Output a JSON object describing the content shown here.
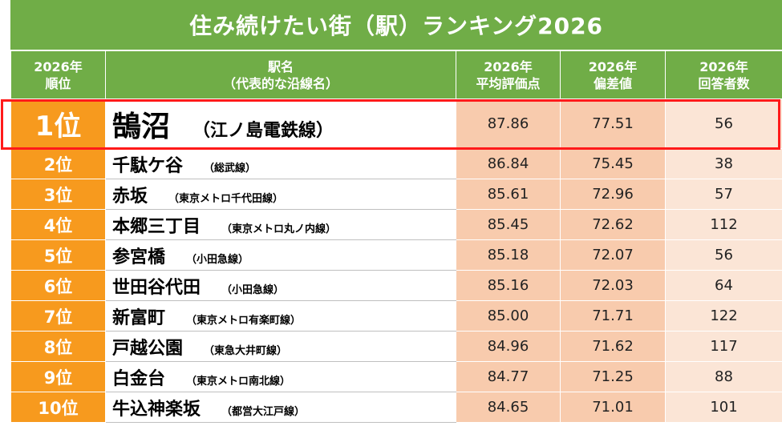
{
  "title": "住み続けたい街（駅）ランキング2026",
  "headers": {
    "rank": [
      "2026年",
      "順位"
    ],
    "station": [
      "駅名",
      "（代表的な沿線名）"
    ],
    "avg": [
      "2026年",
      "平均評価点"
    ],
    "dev": [
      "2026年",
      "偏差値"
    ],
    "count": [
      "2026年",
      "回答者数"
    ]
  },
  "rows": [
    {
      "rank": "1位",
      "name": "鵠沼",
      "line": "（江ノ島電鉄線）",
      "avg": "87.86",
      "dev": "77.51",
      "count": "56"
    },
    {
      "rank": "2位",
      "name": "千駄ケ谷",
      "line": "（総武線）",
      "avg": "86.84",
      "dev": "75.45",
      "count": "38"
    },
    {
      "rank": "3位",
      "name": "赤坂",
      "line": "（東京メトロ千代田線）",
      "avg": "85.61",
      "dev": "72.96",
      "count": "57"
    },
    {
      "rank": "4位",
      "name": "本郷三丁目",
      "line": "（東京メトロ丸ノ内線）",
      "avg": "85.45",
      "dev": "72.62",
      "count": "112"
    },
    {
      "rank": "5位",
      "name": "参宮橋",
      "line": "（小田急線）",
      "avg": "85.18",
      "dev": "72.07",
      "count": "56"
    },
    {
      "rank": "6位",
      "name": "世田谷代田",
      "line": "（小田急線）",
      "avg": "85.16",
      "dev": "72.03",
      "count": "64"
    },
    {
      "rank": "7位",
      "name": "新富町",
      "line": "（東京メトロ有楽町線）",
      "avg": "85.00",
      "dev": "71.71",
      "count": "122"
    },
    {
      "rank": "8位",
      "name": "戸越公園",
      "line": "（東急大井町線）",
      "avg": "84.96",
      "dev": "71.62",
      "count": "117"
    },
    {
      "rank": "9位",
      "name": "白金台",
      "line": "（東京メトロ南北線）",
      "avg": "84.77",
      "dev": "71.25",
      "count": "88"
    },
    {
      "rank": "10位",
      "name": "牛込神楽坂",
      "line": "（都営大江戸線）",
      "avg": "84.65",
      "dev": "71.01",
      "count": "101"
    }
  ],
  "colors": {
    "header_green": "#70ad47",
    "rank_orange": "#f79a1e",
    "score_peach": "#f8cbad",
    "count_light": "#fbe5d6",
    "highlight_red": "#ff1a1a"
  }
}
